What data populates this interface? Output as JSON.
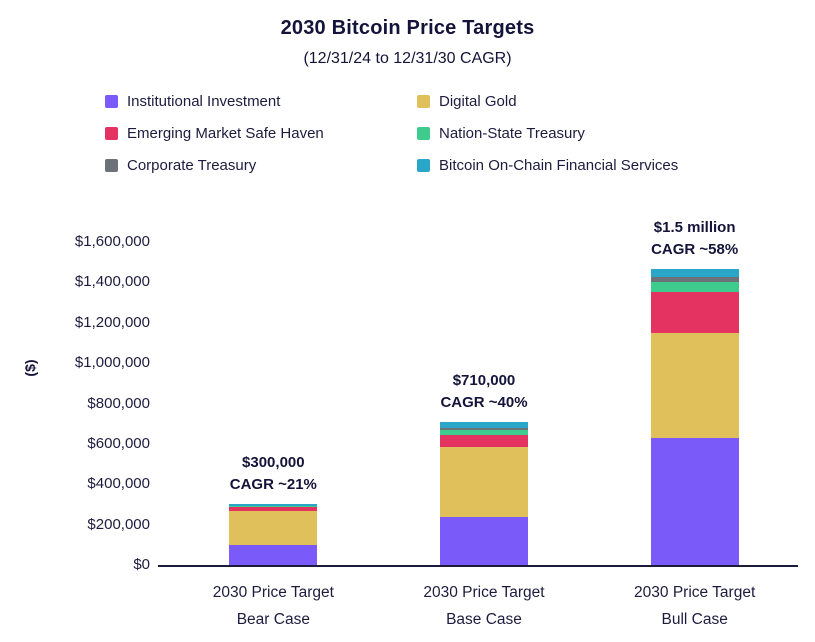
{
  "header": {
    "title": "2030 Bitcoin Price Targets",
    "subtitle": "(12/31/24 to 12/31/30 CAGR)"
  },
  "legend": {
    "items": [
      {
        "label": "Institutional Investment",
        "color": "#7a5af8"
      },
      {
        "label": "Digital Gold",
        "color": "#e0c05a"
      },
      {
        "label": "Emerging Market Safe Haven",
        "color": "#e43360"
      },
      {
        "label": "Nation-State Treasury",
        "color": "#3ecb8e"
      },
      {
        "label": "Corporate Treasury",
        "color": "#6d7278"
      },
      {
        "label": "Bitcoin On-Chain Financial Services",
        "color": "#2aa6c9"
      }
    ]
  },
  "chart_data": {
    "type": "bar",
    "stacked": true,
    "title": "2030 Bitcoin Price Targets",
    "subtitle": "(12/31/24 to 12/31/30 CAGR)",
    "ylabel": "($)",
    "ylim": [
      0,
      1600000
    ],
    "ytick_step": 200000,
    "grid": false,
    "legend_position": "top",
    "categories": [
      [
        "2030 Price Target",
        "Bear Case"
      ],
      [
        "2030 Price Target",
        "Base Case"
      ],
      [
        "2030 Price Target",
        "Bull Case"
      ]
    ],
    "series": [
      {
        "name": "Institutional Investment",
        "color": "#7a5af8",
        "values": [
          100000,
          240000,
          630000
        ]
      },
      {
        "name": "Digital Gold",
        "color": "#e0c05a",
        "values": [
          170000,
          345000,
          520000
        ]
      },
      {
        "name": "Emerging Market Safe Haven",
        "color": "#e43360",
        "values": [
          15000,
          60000,
          200000
        ]
      },
      {
        "name": "Nation-State Treasury",
        "color": "#3ecb8e",
        "values": [
          5000,
          25000,
          50000
        ]
      },
      {
        "name": "Corporate Treasury",
        "color": "#6d7278",
        "values": [
          3000,
          10000,
          25000
        ]
      },
      {
        "name": "Bitcoin On-Chain Financial Services",
        "color": "#2aa6c9",
        "values": [
          7000,
          30000,
          40000
        ]
      }
    ],
    "bar_annotations": [
      {
        "lines": [
          "$300,000",
          "CAGR ~21%"
        ]
      },
      {
        "lines": [
          "$710,000",
          "CAGR ~40%"
        ]
      },
      {
        "lines": [
          "$1.5 million",
          "CAGR ~58%"
        ]
      }
    ]
  },
  "colors": {
    "text": "#1d1c3e",
    "title_text": "#14133a",
    "axis": "#1c1b3b",
    "background": "#ffffff"
  }
}
